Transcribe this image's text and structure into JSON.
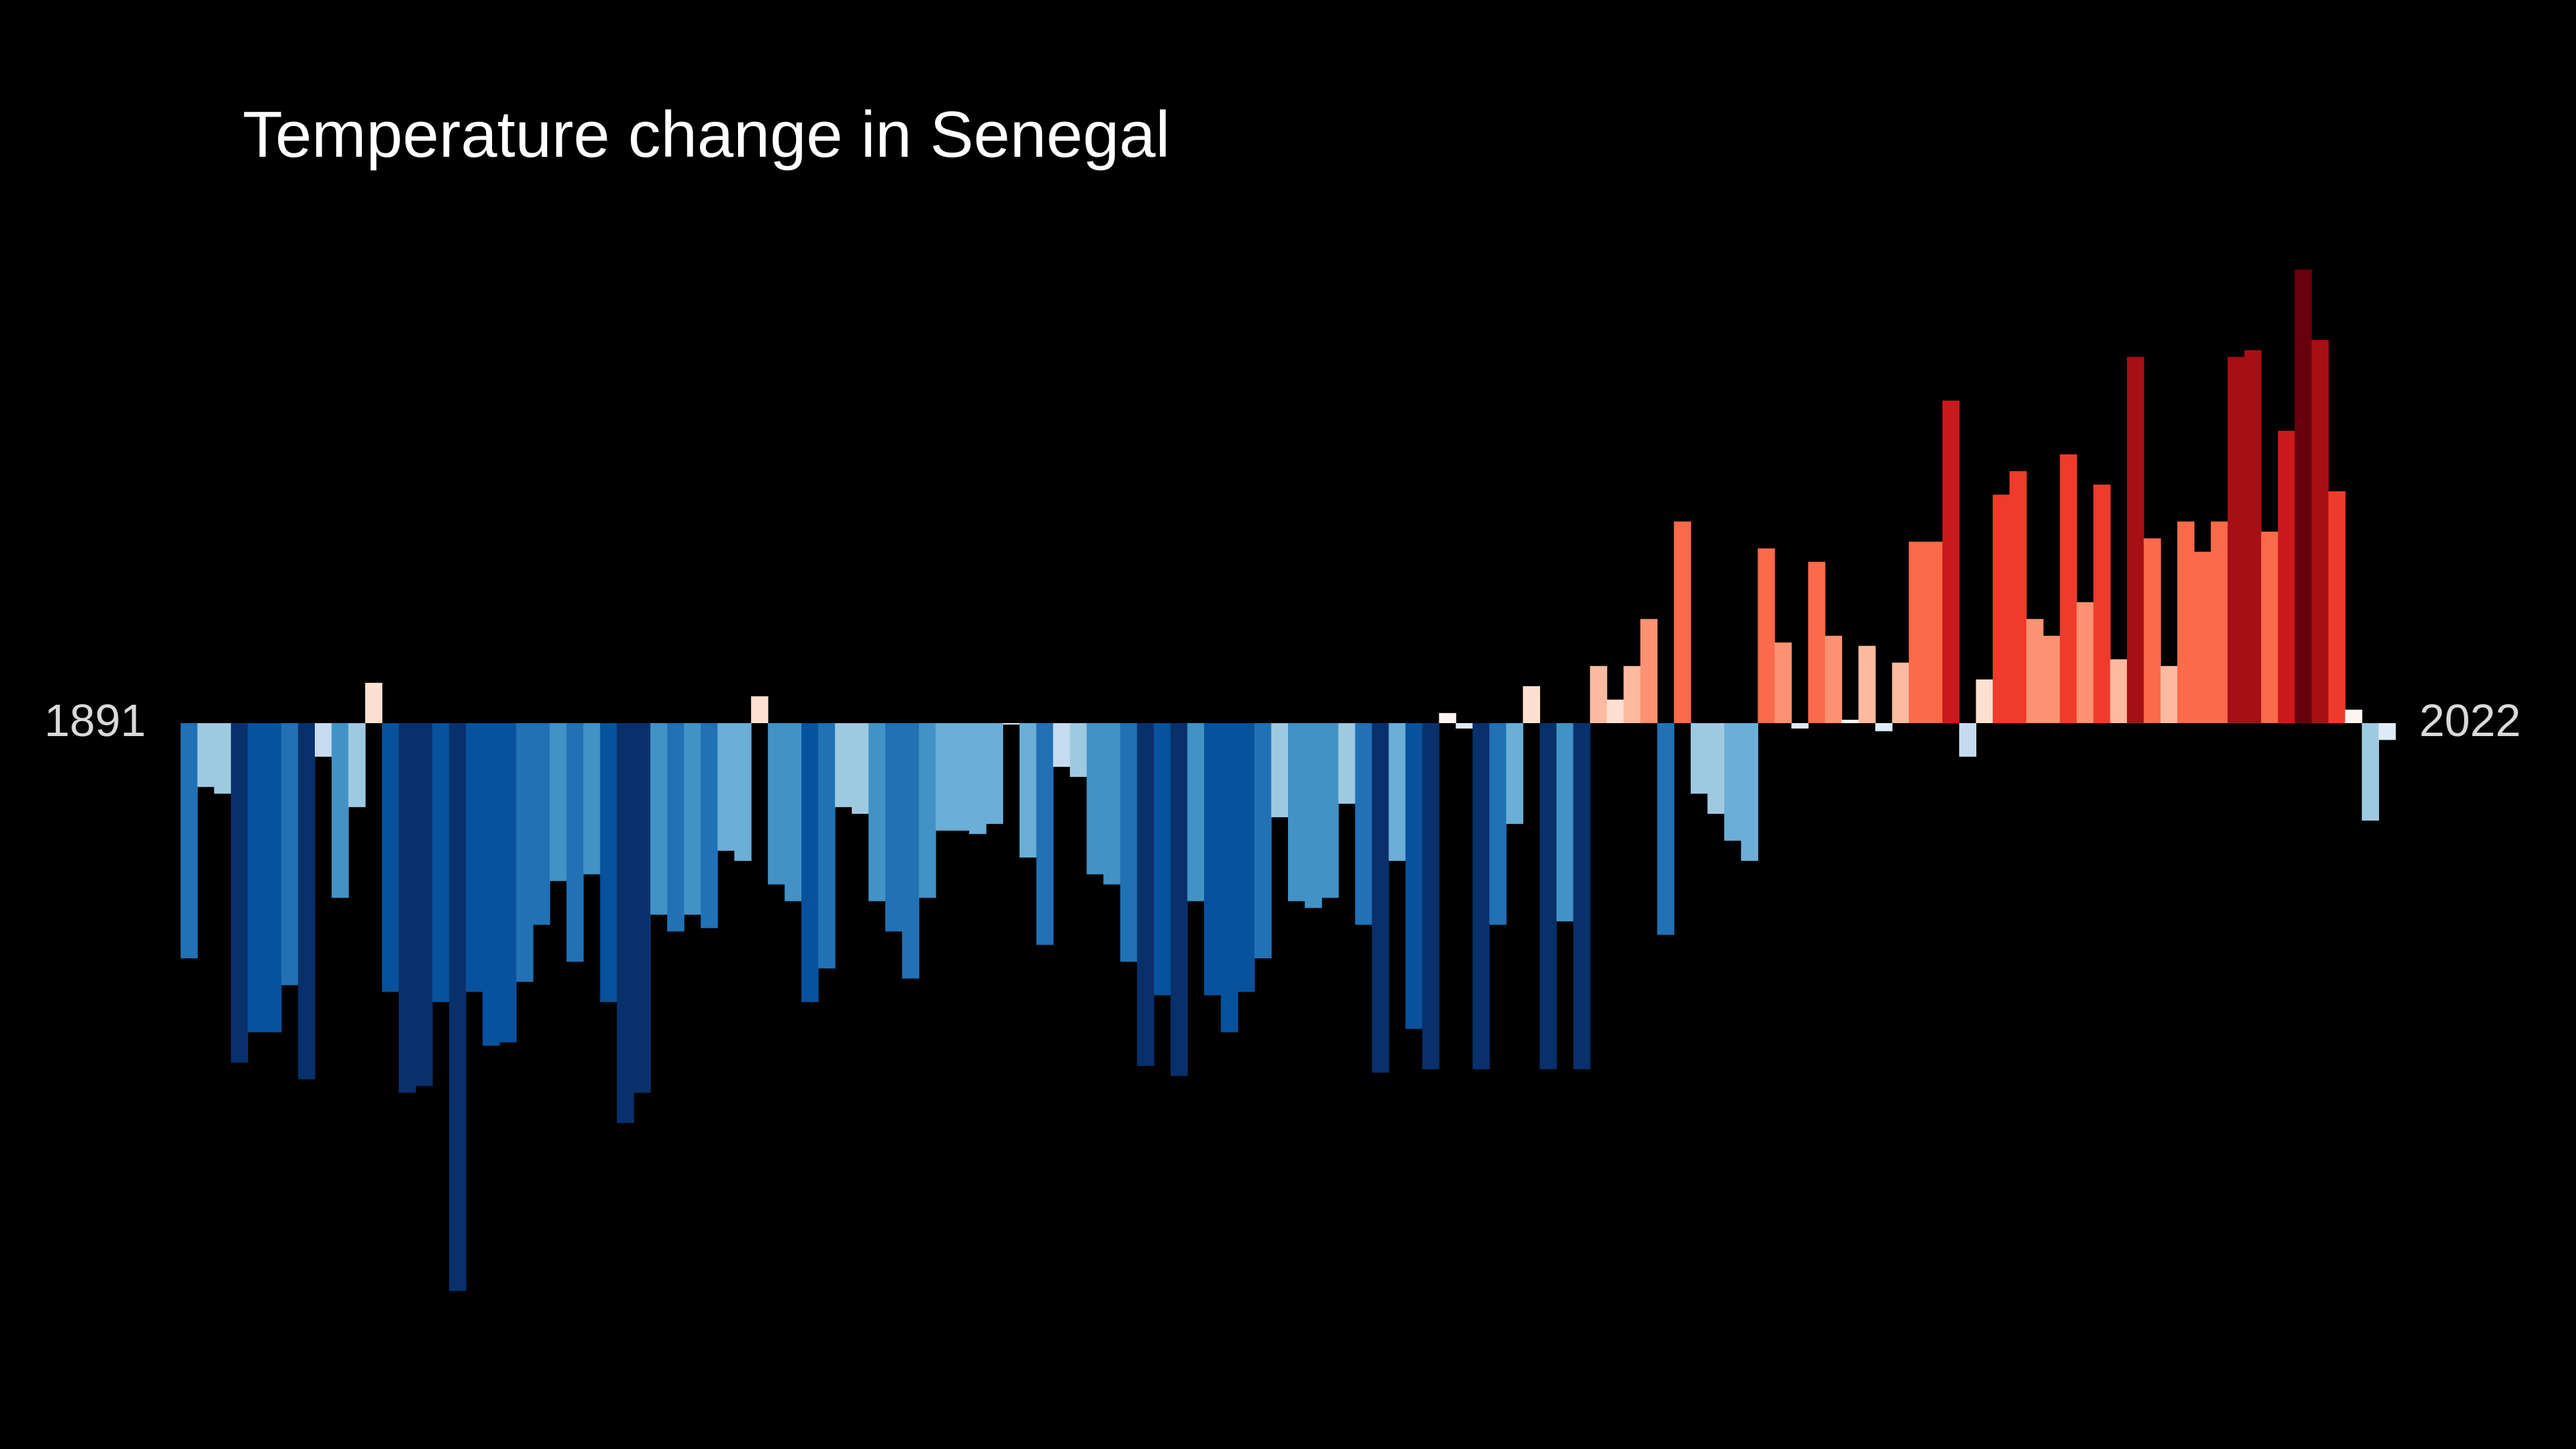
{
  "chart_data": {
    "type": "bar",
    "title": "Temperature change in Senegal",
    "start_year_label": "1891",
    "end_year_label": "2022",
    "x_start": 1891,
    "x_end": 2022,
    "ylim": [
      -0.85,
      0.7
    ],
    "grid": false,
    "legend": "none",
    "colors": {
      "background": "#000000",
      "title": "#ffffff",
      "year_labels": "#d9d9d9"
    },
    "values": [
      -0.35,
      -0.095,
      -0.105,
      -0.505,
      -0.46,
      -0.46,
      -0.39,
      -0.53,
      -0.05,
      -0.26,
      -0.125,
      0.06,
      -0.4,
      -0.55,
      -0.54,
      -0.415,
      -0.845,
      -0.4,
      -0.48,
      -0.475,
      -0.385,
      -0.3,
      -0.235,
      -0.355,
      -0.225,
      -0.415,
      -0.595,
      -0.55,
      -0.285,
      -0.31,
      -0.285,
      -0.305,
      -0.19,
      -0.205,
      0.04,
      -0.24,
      -0.265,
      -0.415,
      -0.365,
      -0.125,
      -0.135,
      -0.265,
      -0.31,
      -0.38,
      -0.26,
      -0.16,
      -0.16,
      -0.165,
      -0.15,
      -0.002,
      -0.2,
      -0.33,
      -0.065,
      -0.08,
      -0.225,
      -0.24,
      -0.355,
      -0.51,
      -0.405,
      -0.525,
      -0.265,
      -0.405,
      -0.46,
      -0.4,
      -0.35,
      -0.14,
      -0.265,
      -0.275,
      -0.26,
      -0.12,
      -0.3,
      -0.52,
      -0.205,
      -0.455,
      -0.515,
      0.015,
      -0.008,
      -0.515,
      -0.3,
      -0.15,
      0.055,
      -0.515,
      -0.295,
      -0.515,
      0.085,
      0.035,
      0.085,
      0.155,
      -0.315,
      0.3,
      -0.105,
      -0.135,
      -0.175,
      -0.205,
      0.26,
      0.12,
      -0.008,
      0.24,
      0.13,
      0.005,
      0.115,
      -0.012,
      0.09,
      0.27,
      0.27,
      0.48,
      -0.05,
      0.065,
      0.34,
      0.375,
      0.155,
      0.13,
      0.4,
      0.18,
      0.355,
      0.095,
      0.545,
      0.275,
      0.085,
      0.3,
      0.255,
      0.3,
      0.545,
      0.555,
      0.285,
      0.435,
      0.675,
      0.57,
      0.345,
      0.02,
      -0.145,
      -0.025
    ]
  }
}
